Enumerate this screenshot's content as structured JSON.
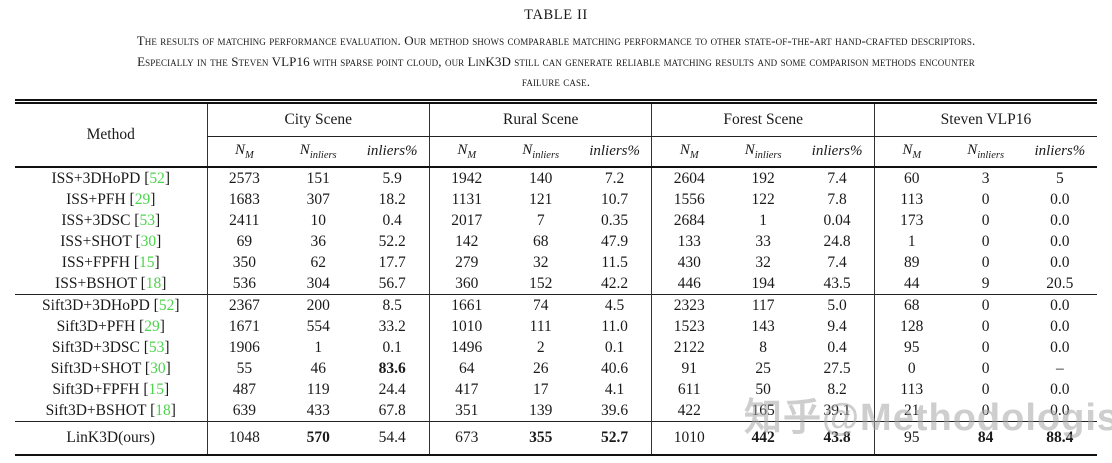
{
  "caption": {
    "title": "TABLE II",
    "lines": [
      "The results of matching performance evaluation. Our method shows comparable matching performance to other state-of-the-art hand-crafted descriptors.",
      "Especially in the Steven VLP16 with sparse point cloud, our LinK3D still can generate reliable matching results and some comparison methods encounter",
      "failure case."
    ]
  },
  "table": {
    "method_header": "Method",
    "col_groups": [
      "City Scene",
      "Rural Scene",
      "Forest Scene",
      "Steven VLP16"
    ],
    "sub_headers": [
      {
        "base": "N",
        "sub": "M"
      },
      {
        "base": "N",
        "sub": "inliers"
      },
      {
        "base": "inliers%",
        "sub": ""
      }
    ],
    "blocks": [
      {
        "rows": [
          {
            "method": "ISS+3DHoPD",
            "cite": "52",
            "cells": [
              "2573",
              "151",
              "5.9",
              "1942",
              "140",
              "7.2",
              "2604",
              "192",
              "7.4",
              "60",
              "3",
              "5"
            ],
            "bold": []
          },
          {
            "method": "ISS+PFH",
            "cite": "29",
            "cells": [
              "1683",
              "307",
              "18.2",
              "1131",
              "121",
              "10.7",
              "1556",
              "122",
              "7.8",
              "113",
              "0",
              "0.0"
            ],
            "bold": []
          },
          {
            "method": "ISS+3DSC",
            "cite": "53",
            "cells": [
              "2411",
              "10",
              "0.4",
              "2017",
              "7",
              "0.35",
              "2684",
              "1",
              "0.04",
              "173",
              "0",
              "0.0"
            ],
            "bold": []
          },
          {
            "method": "ISS+SHOT",
            "cite": "30",
            "cells": [
              "69",
              "36",
              "52.2",
              "142",
              "68",
              "47.9",
              "133",
              "33",
              "24.8",
              "1",
              "0",
              "0.0"
            ],
            "bold": []
          },
          {
            "method": "ISS+FPFH",
            "cite": "15",
            "cells": [
              "350",
              "62",
              "17.7",
              "279",
              "32",
              "11.5",
              "430",
              "32",
              "7.4",
              "89",
              "0",
              "0.0"
            ],
            "bold": []
          },
          {
            "method": "ISS+BSHOT",
            "cite": "18",
            "cells": [
              "536",
              "304",
              "56.7",
              "360",
              "152",
              "42.2",
              "446",
              "194",
              "43.5",
              "44",
              "9",
              "20.5"
            ],
            "bold": []
          }
        ]
      },
      {
        "rows": [
          {
            "method": "Sift3D+3DHoPD",
            "cite": "52",
            "cells": [
              "2367",
              "200",
              "8.5",
              "1661",
              "74",
              "4.5",
              "2323",
              "117",
              "5.0",
              "68",
              "0",
              "0.0"
            ],
            "bold": []
          },
          {
            "method": "Sift3D+PFH",
            "cite": "29",
            "cells": [
              "1671",
              "554",
              "33.2",
              "1010",
              "111",
              "11.0",
              "1523",
              "143",
              "9.4",
              "128",
              "0",
              "0.0"
            ],
            "bold": []
          },
          {
            "method": "Sift3D+3DSC",
            "cite": "53",
            "cells": [
              "1906",
              "1",
              "0.1",
              "1496",
              "2",
              "0.1",
              "2122",
              "8",
              "0.4",
              "95",
              "0",
              "0.0"
            ],
            "bold": []
          },
          {
            "method": "Sift3D+SHOT",
            "cite": "30",
            "cells": [
              "55",
              "46",
              "83.6",
              "64",
              "26",
              "40.6",
              "91",
              "25",
              "27.5",
              "0",
              "0",
              "–"
            ],
            "bold": [
              2
            ]
          },
          {
            "method": "Sift3D+FPFH",
            "cite": "15",
            "cells": [
              "487",
              "119",
              "24.4",
              "417",
              "17",
              "4.1",
              "611",
              "50",
              "8.2",
              "113",
              "0",
              "0.0"
            ],
            "bold": []
          },
          {
            "method": "Sift3D+BSHOT",
            "cite": "18",
            "cells": [
              "639",
              "433",
              "67.8",
              "351",
              "139",
              "39.6",
              "422",
              "165",
              "39.1",
              "21",
              "0",
              "0.0"
            ],
            "bold": []
          }
        ]
      },
      {
        "rows": [
          {
            "method": "LinK3D(ours)",
            "cite": null,
            "cells": [
              "1048",
              "570",
              "54.4",
              "673",
              "355",
              "52.7",
              "1010",
              "442",
              "43.8",
              "95",
              "84",
              "88.4"
            ],
            "bold": [
              1,
              4,
              5,
              7,
              8,
              10,
              11
            ]
          }
        ]
      }
    ]
  },
  "watermark": {
    "text": "知乎@Methodologist"
  },
  "colors": {
    "citation_green": "#4cd44c",
    "text": "#1a1a1a",
    "rule": "#111111"
  }
}
